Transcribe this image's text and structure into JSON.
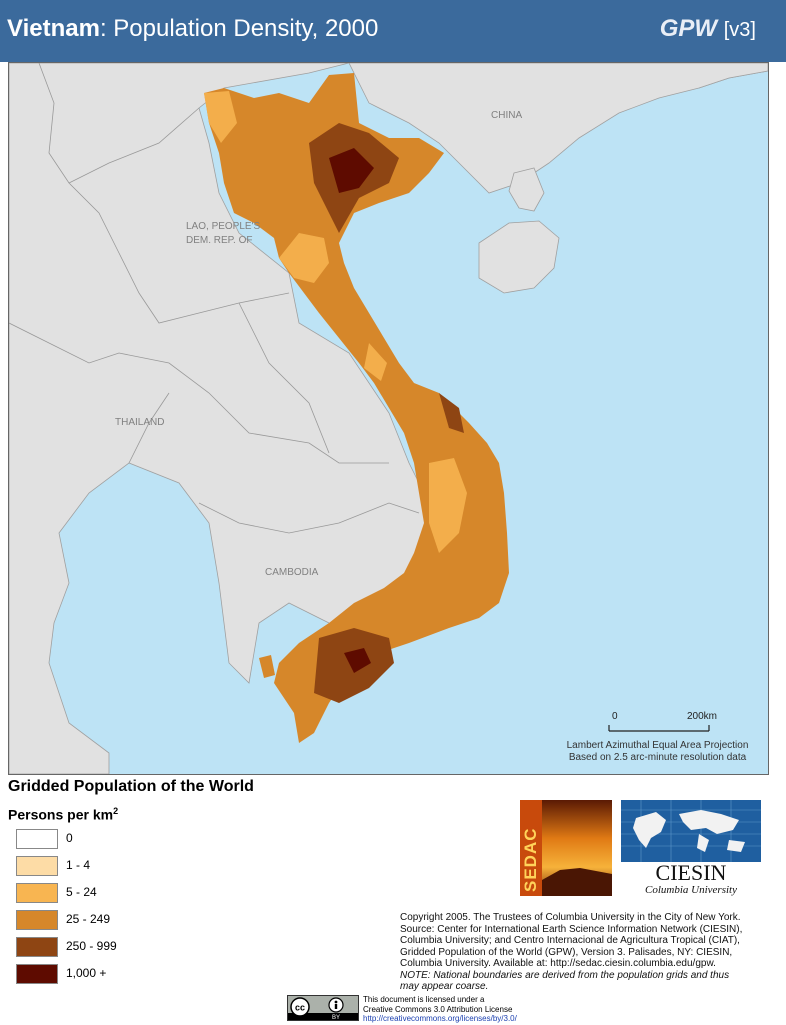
{
  "header": {
    "country": "Vietnam",
    "title_rest": ": Population Density, 2000",
    "gpw": "GPW",
    "version": "[v3]",
    "bg_color": "#3b6a9c"
  },
  "map": {
    "labels": {
      "china": "CHINA",
      "lao_line1": "LAO, PEOPLE'S",
      "lao_line2": "DEM. REP. OF",
      "thailand": "THAILAND",
      "cambodia": "CAMBODIA"
    },
    "scale": {
      "left": "0",
      "right": "200km"
    },
    "projection_line1": "Lambert Azimuthal Equal Area Projection",
    "projection_line2": "Based on 2.5 arc-minute resolution data",
    "colors": {
      "water": "#bde3f5",
      "land": "#e1e1e1",
      "border": "#999999"
    }
  },
  "legend": {
    "title": "Gridded Population of the World",
    "subtitle": "Persons per km",
    "subtitle_sup": "2",
    "items": [
      {
        "label": "0",
        "color": "#ffffff"
      },
      {
        "label": "1 - 4",
        "color": "#fddca6"
      },
      {
        "label": "5 - 24",
        "color": "#f8b551"
      },
      {
        "label": "25 - 249",
        "color": "#d6872a"
      },
      {
        "label": "250 - 999",
        "color": "#8e4513"
      },
      {
        "label": "1,000 +",
        "color": "#5e0b00"
      }
    ]
  },
  "logos": {
    "sedac": "SEDAC",
    "ciesin": "CIESIN",
    "ciesin_sub": "Columbia University"
  },
  "copyright": {
    "lines": [
      "Copyright 2005. The Trustees of Columbia University in the City of New York.",
      "Source: Center for International Earth Science Information Network (CIESIN),",
      "Columbia University; and Centro Internacional de Agricultura Tropical (CIAT),",
      "Gridded Population of the World (GPW),  Version 3.  Palisades, NY: CIESIN,",
      "Columbia University.   Available at:    http://sedac.ciesin.columbia.edu/gpw."
    ],
    "note_line1": "NOTE: National boundaries are derived from the population grids and thus",
    "note_line2": "may appear coarse."
  },
  "license": {
    "badge": "BY",
    "line1": "This document is licensed under a",
    "line2": "Creative Commons 3.0 Attribution License",
    "link": "http://creativecommons.org/licenses/by/3.0/"
  }
}
